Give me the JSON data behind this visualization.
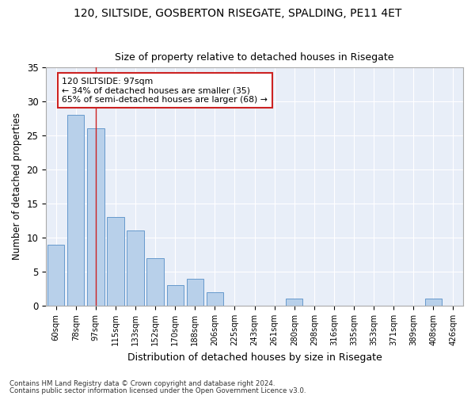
{
  "title1": "120, SILTSIDE, GOSBERTON RISEGATE, SPALDING, PE11 4ET",
  "title2": "Size of property relative to detached houses in Risegate",
  "xlabel": "Distribution of detached houses by size in Risegate",
  "ylabel": "Number of detached properties",
  "categories": [
    "60sqm",
    "78sqm",
    "97sqm",
    "115sqm",
    "133sqm",
    "152sqm",
    "170sqm",
    "188sqm",
    "206sqm",
    "225sqm",
    "243sqm",
    "261sqm",
    "280sqm",
    "298sqm",
    "316sqm",
    "335sqm",
    "353sqm",
    "371sqm",
    "389sqm",
    "408sqm",
    "426sqm"
  ],
  "values": [
    9,
    28,
    26,
    13,
    11,
    7,
    3,
    4,
    2,
    0,
    0,
    0,
    1,
    0,
    0,
    0,
    0,
    0,
    0,
    1,
    0
  ],
  "bar_color": "#b8d0ea",
  "bar_edgecolor": "#6699cc",
  "highlight_index": 2,
  "highlight_line_color": "#cc2222",
  "annotation_text": "120 SILTSIDE: 97sqm\n← 34% of detached houses are smaller (35)\n65% of semi-detached houses are larger (68) →",
  "annotation_box_facecolor": "#ffffff",
  "annotation_box_edgecolor": "#cc2222",
  "ylim": [
    0,
    35
  ],
  "yticks": [
    0,
    5,
    10,
    15,
    20,
    25,
    30,
    35
  ],
  "plot_bg_color": "#e8eef8",
  "grid_color": "#ffffff",
  "fig_bg_color": "#ffffff",
  "footer1": "Contains HM Land Registry data © Crown copyright and database right 2024.",
  "footer2": "Contains public sector information licensed under the Open Government Licence v3.0."
}
